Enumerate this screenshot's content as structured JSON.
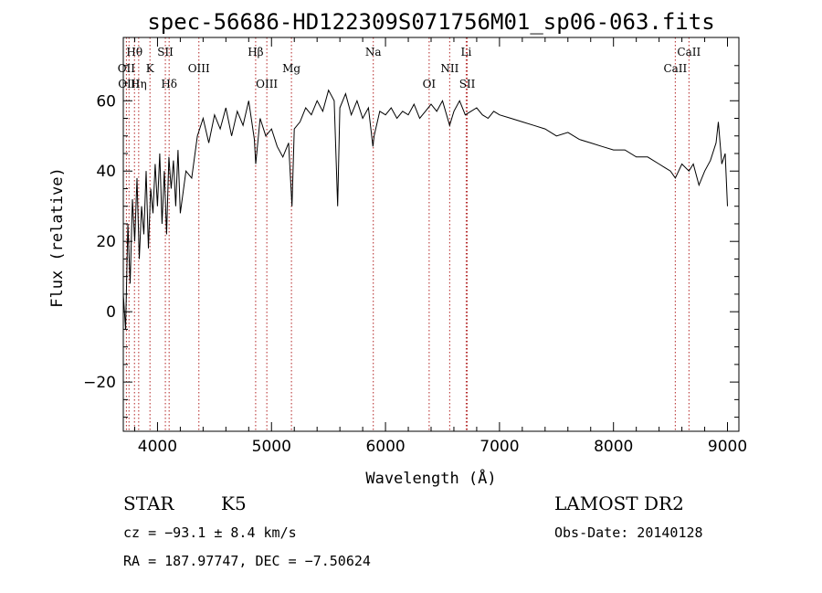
{
  "chart_data": {
    "type": "line",
    "title": "spec-56686-HD122309S071756M01_sp06-063.fits",
    "xlabel": "Wavelength (Å)",
    "ylabel": "Flux (relative)",
    "xlim": [
      3700,
      9100
    ],
    "ylim": [
      -34,
      78
    ],
    "x_ticks": [
      4000,
      5000,
      6000,
      7000,
      8000,
      9000
    ],
    "x_tick_labels": [
      "4000",
      "5000",
      "6000",
      "7000",
      "8000",
      "9000"
    ],
    "y_ticks": [
      -20,
      0,
      20,
      40,
      60
    ],
    "y_tick_labels": [
      "−20",
      "0",
      "20",
      "40",
      "60"
    ],
    "grid": false,
    "legend": "none",
    "series": [
      {
        "x": [
          3700,
          3720,
          3740,
          3760,
          3780,
          3800,
          3820,
          3840,
          3860,
          3880,
          3900,
          3920,
          3940,
          3960,
          3980,
          4000,
          4020,
          4040,
          4060,
          4080,
          4100,
          4120,
          4140,
          4160,
          4180,
          4200,
          4250,
          4300,
          4350,
          4400,
          4450,
          4500,
          4550,
          4600,
          4650,
          4700,
          4750,
          4800,
          4850,
          4862,
          4900,
          4950,
          5000,
          5050,
          5100,
          5150,
          5180,
          5200,
          5250,
          5300,
          5350,
          5400,
          5450,
          5500,
          5550,
          5580,
          5600,
          5650,
          5700,
          5750,
          5800,
          5850,
          5890,
          5900,
          5950,
          6000,
          6050,
          6100,
          6150,
          6200,
          6250,
          6300,
          6350,
          6400,
          6450,
          6500,
          6563,
          6600,
          6650,
          6700,
          6750,
          6800,
          6850,
          6900,
          6950,
          7000,
          7100,
          7200,
          7300,
          7400,
          7500,
          7600,
          7700,
          7800,
          7900,
          8000,
          8100,
          8200,
          8300,
          8400,
          8450,
          8500,
          8542,
          8600,
          8662,
          8700,
          8750,
          8800,
          8850,
          8900,
          8920,
          8950,
          8980,
          9000
        ],
        "y": [
          5,
          -5,
          25,
          8,
          32,
          20,
          38,
          15,
          30,
          22,
          40,
          18,
          35,
          28,
          42,
          30,
          45,
          25,
          40,
          22,
          44,
          35,
          43,
          30,
          46,
          28,
          40,
          38,
          50,
          55,
          48,
          56,
          52,
          58,
          50,
          57,
          53,
          60,
          49,
          42,
          55,
          50,
          52,
          47,
          44,
          48,
          30,
          52,
          54,
          58,
          56,
          60,
          57,
          63,
          60,
          30,
          58,
          62,
          56,
          60,
          55,
          58,
          47,
          50,
          57,
          56,
          58,
          55,
          57,
          56,
          59,
          55,
          57,
          59,
          57,
          60,
          53,
          57,
          60,
          56,
          57,
          58,
          56,
          55,
          57,
          56,
          55,
          54,
          53,
          52,
          50,
          51,
          49,
          48,
          47,
          46,
          46,
          44,
          44,
          42,
          41,
          40,
          38,
          42,
          40,
          42,
          36,
          40,
          43,
          48,
          54,
          42,
          45,
          30
        ]
      }
    ],
    "line_labels": [
      {
        "x": 3798,
        "label": "Hθ",
        "row": 1
      },
      {
        "x": 3727,
        "label": "OII",
        "row": 2
      },
      {
        "x": 3750,
        "label": "OIII",
        "row": 3
      },
      {
        "x": 3835,
        "label": "Hη",
        "row": 3
      },
      {
        "x": 3934,
        "label": "K",
        "row": 2
      },
      {
        "x": 4069,
        "label": "SII",
        "row": 1
      },
      {
        "x": 4102,
        "label": "Hδ",
        "row": 3
      },
      {
        "x": 4363,
        "label": "OIII",
        "row": 2
      },
      {
        "x": 4861,
        "label": "Hβ",
        "row": 1
      },
      {
        "x": 4959,
        "label": "OIII",
        "row": 3
      },
      {
        "x": 5175,
        "label": "Mg",
        "row": 2
      },
      {
        "x": 5893,
        "label": "Na",
        "row": 1
      },
      {
        "x": 6383,
        "label": "OI",
        "row": 3
      },
      {
        "x": 6563,
        "label": "NII",
        "row": 2
      },
      {
        "x": 6708,
        "label": "Li",
        "row": 1
      },
      {
        "x": 6717,
        "label": "SII",
        "row": 3
      },
      {
        "x": 8662,
        "label": "CaII",
        "row": 1
      },
      {
        "x": 8542,
        "label": "CaII",
        "row": 2
      }
    ],
    "line_marker_x": [
      3727,
      3750,
      3798,
      3835,
      3934,
      4069,
      4102,
      4363,
      4861,
      4959,
      5175,
      5893,
      6383,
      6563,
      6708,
      6717,
      8542,
      8662
    ],
    "line_marker_color": "#b22222",
    "spectrum_color": "#000000"
  },
  "info": {
    "object_class": "STAR",
    "subclass": "K5",
    "survey": "LAMOST DR2",
    "cz": "cz = −93.1 ± 8.4 km/s",
    "obs_date": "Obs-Date: 20140128",
    "coords": "RA = 187.97747, DEC =  −7.50624"
  }
}
